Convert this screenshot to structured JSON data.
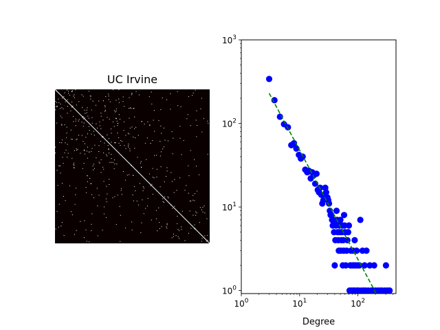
{
  "chart_data": [
    {
      "type": "heatmap",
      "title": "UC Irvine",
      "colors": {
        "background": "#0a0000",
        "marks": "#ffffff"
      },
      "grid": false,
      "axes_visible": false,
      "diagonal": true
    },
    {
      "type": "scatter",
      "title": "",
      "xlabel": "Degree",
      "ylabel": "",
      "xscale": "log",
      "yscale": "log",
      "xlim": [
        1,
        450
      ],
      "ylim": [
        0.92,
        1000
      ],
      "xticks": [
        {
          "value": 1,
          "base": "10",
          "exp": "0"
        },
        {
          "value": 10,
          "base": "10",
          "exp": "1"
        },
        {
          "value": 100,
          "base": "10",
          "exp": "2"
        }
      ],
      "yticks": [
        {
          "value": 1,
          "base": "10",
          "exp": "0"
        },
        {
          "value": 10,
          "base": "10",
          "exp": "1"
        },
        {
          "value": 100,
          "base": "10",
          "exp": "2"
        },
        {
          "value": 1000,
          "base": "10",
          "exp": "3"
        }
      ],
      "grid": false,
      "colors": {
        "points": "#0000ff",
        "fit": "#008000"
      },
      "series": [
        {
          "kind": "points",
          "points": [
            [
              3,
              340
            ],
            [
              3.7,
              190
            ],
            [
              4.6,
              120
            ],
            [
              5.4,
              98
            ],
            [
              6.3,
              90
            ],
            [
              7.2,
              55
            ],
            [
              8,
              58
            ],
            [
              8.8,
              50
            ],
            [
              9.7,
              42
            ],
            [
              10.5,
              38
            ],
            [
              11.3,
              40
            ],
            [
              12.5,
              28
            ],
            [
              13.5,
              26
            ],
            [
              14.5,
              27
            ],
            [
              15.5,
              22
            ],
            [
              16.5,
              26
            ],
            [
              17.5,
              24
            ],
            [
              18.5,
              19
            ],
            [
              19.5,
              25
            ],
            [
              20.5,
              16
            ],
            [
              21.5,
              15
            ],
            [
              22.5,
              17
            ],
            [
              23.5,
              14
            ],
            [
              24.5,
              11
            ],
            [
              25.5,
              12
            ],
            [
              26.5,
              13
            ],
            [
              27.5,
              17
            ],
            [
              28.5,
              15
            ],
            [
              30,
              13
            ],
            [
              31,
              12
            ],
            [
              32,
              11
            ],
            [
              33,
              9
            ],
            [
              34,
              8
            ],
            [
              35,
              8
            ],
            [
              36,
              7
            ],
            [
              37,
              6
            ],
            [
              38,
              7
            ],
            [
              39,
              5
            ],
            [
              40,
              2
            ],
            [
              41,
              4
            ],
            [
              42,
              6
            ],
            [
              43,
              9
            ],
            [
              44,
              7
            ],
            [
              45,
              5
            ],
            [
              46,
              4
            ],
            [
              47,
              3
            ],
            [
              48,
              6
            ],
            [
              49,
              5
            ],
            [
              50,
              7
            ],
            [
              51,
              3
            ],
            [
              52,
              4
            ],
            [
              53,
              5
            ],
            [
              54,
              6
            ],
            [
              55,
              2
            ],
            [
              56,
              4
            ],
            [
              57,
              3
            ],
            [
              58,
              8
            ],
            [
              59,
              6
            ],
            [
              60,
              5
            ],
            [
              62,
              2
            ],
            [
              64,
              3
            ],
            [
              66,
              4
            ],
            [
              68,
              5
            ],
            [
              70,
              6
            ],
            [
              72,
              1
            ],
            [
              74,
              2
            ],
            [
              76,
              3
            ],
            [
              78,
              1
            ],
            [
              80,
              2
            ],
            [
              82,
              3
            ],
            [
              84,
              1
            ],
            [
              86,
              2
            ],
            [
              88,
              4
            ],
            [
              90,
              1
            ],
            [
              92,
              2
            ],
            [
              95,
              3
            ],
            [
              98,
              1
            ],
            [
              100,
              2
            ],
            [
              103,
              1
            ],
            [
              106,
              2
            ],
            [
              110,
              7
            ],
            [
              115,
              1
            ],
            [
              120,
              3
            ],
            [
              125,
              1
            ],
            [
              130,
              2
            ],
            [
              135,
              1
            ],
            [
              140,
              3
            ],
            [
              150,
              1
            ],
            [
              160,
              2
            ],
            [
              170,
              1
            ],
            [
              180,
              1
            ],
            [
              190,
              2
            ],
            [
              200,
              1
            ],
            [
              220,
              1
            ],
            [
              240,
              1
            ],
            [
              260,
              1
            ],
            [
              290,
              1
            ],
            [
              320,
              1
            ],
            [
              350,
              1
            ],
            [
              303,
              2
            ]
          ]
        },
        {
          "kind": "fit-line",
          "points": [
            [
              3,
              230
            ],
            [
              206,
              0.92
            ]
          ]
        }
      ]
    }
  ]
}
